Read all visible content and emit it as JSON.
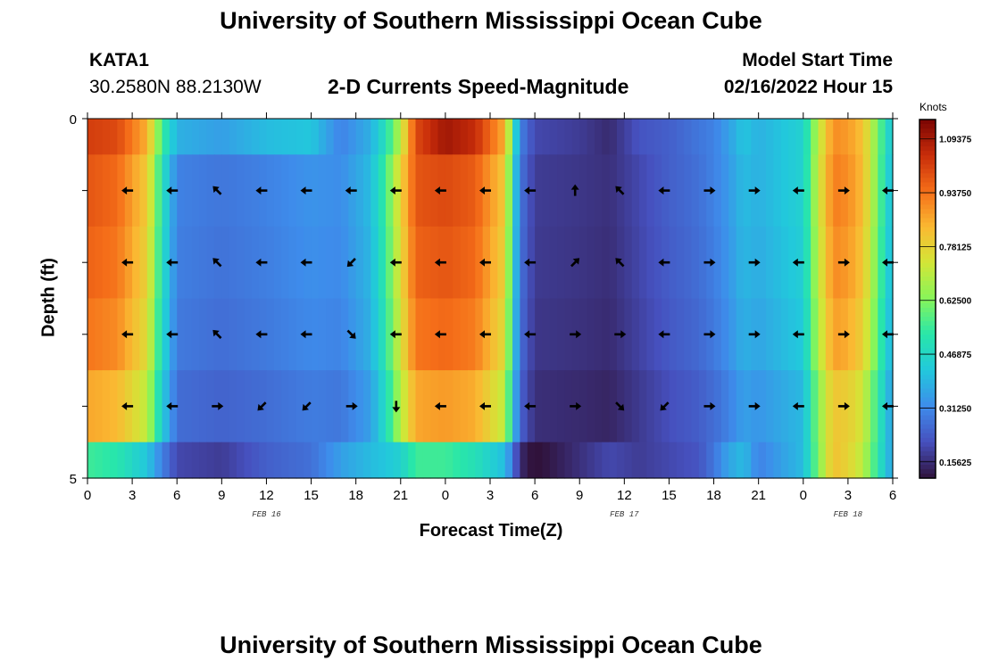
{
  "header": {
    "title": "University of Southern Mississippi Ocean Cube",
    "station": "KATA1",
    "coords": "30.2580N  88.2130W",
    "subtitle": "2-D Currents Speed-Magnitude",
    "model_label": "Model Start Time",
    "model_time": "02/16/2022 Hour 15"
  },
  "footer": {
    "title": "University of Southern Mississippi Ocean Cube"
  },
  "chart_data": {
    "type": "heatmap",
    "title": "2-D Currents Speed-Magnitude",
    "xlabel": "Forecast Time(Z)",
    "ylabel": "Depth (ft)",
    "x_hours": [
      0,
      54
    ],
    "y_depth_ft": [
      0,
      5
    ],
    "x_tick_labels": [
      "0",
      "3",
      "6",
      "9",
      "12",
      "15",
      "18",
      "21",
      "0",
      "3",
      "6",
      "9",
      "12",
      "15",
      "18",
      "21",
      "0",
      "3",
      "6"
    ],
    "y_tick_labels": [
      "0",
      "5"
    ],
    "day_labels": [
      {
        "text": "FEB 16",
        "hour": 12
      },
      {
        "text": "FEB 17",
        "hour": 36
      },
      {
        "text": "FEB 18",
        "hour": 51
      }
    ],
    "colorbar": {
      "unit": "Knots",
      "min": 0.109,
      "max": 1.15,
      "ticks": [
        "0.15625",
        "0.31250",
        "0.46875",
        "0.62500",
        "0.78125",
        "0.93750",
        "1.09375"
      ],
      "tick_values": [
        0.15625,
        0.3125,
        0.46875,
        0.625,
        0.78125,
        0.9375,
        1.09375
      ]
    },
    "depth_rows_ft": [
      0.25,
      1.0,
      2.0,
      3.0,
      4.0,
      4.75
    ],
    "speed_time_hours": [
      0,
      2,
      4,
      5,
      6,
      9,
      12,
      15,
      17,
      19,
      20,
      21,
      22,
      24,
      26,
      28,
      28.5,
      29,
      30,
      33,
      35,
      37,
      39,
      41,
      42,
      43,
      44,
      45,
      48,
      49,
      50,
      51,
      52,
      54
    ],
    "speed_knots": {
      "surface_row": [
        1.02,
        1.0,
        0.85,
        0.55,
        0.38,
        0.35,
        0.4,
        0.42,
        0.3,
        0.38,
        0.5,
        0.7,
        1.0,
        1.1,
        1.05,
        0.85,
        0.55,
        0.3,
        0.2,
        0.18,
        0.15,
        0.22,
        0.24,
        0.28,
        0.3,
        0.35,
        0.42,
        0.38,
        0.45,
        0.7,
        0.9,
        0.88,
        0.82,
        0.4
      ],
      "middle_rows": [
        0.98,
        0.95,
        0.8,
        0.5,
        0.3,
        0.28,
        0.3,
        0.33,
        0.32,
        0.4,
        0.55,
        0.78,
        0.98,
        1.0,
        0.97,
        0.8,
        0.5,
        0.28,
        0.18,
        0.17,
        0.16,
        0.2,
        0.24,
        0.27,
        0.3,
        0.34,
        0.4,
        0.38,
        0.45,
        0.72,
        0.92,
        0.9,
        0.83,
        0.38
      ],
      "bottom_row": [
        0.55,
        0.52,
        0.42,
        0.3,
        0.2,
        0.18,
        0.24,
        0.27,
        0.35,
        0.4,
        0.42,
        0.45,
        0.55,
        0.55,
        0.5,
        0.4,
        0.28,
        0.15,
        0.1,
        0.16,
        0.2,
        0.18,
        0.2,
        0.22,
        0.28,
        0.36,
        0.4,
        0.3,
        0.4,
        0.62,
        0.82,
        0.78,
        0.7,
        0.34
      ]
    },
    "arrows": [
      {
        "hour": 2.7,
        "depth": 1,
        "dir": "W"
      },
      {
        "hour": 5.7,
        "depth": 1,
        "dir": "W"
      },
      {
        "hour": 8.7,
        "depth": 1,
        "dir": "NW"
      },
      {
        "hour": 11.7,
        "depth": 1,
        "dir": "W"
      },
      {
        "hour": 14.7,
        "depth": 1,
        "dir": "W"
      },
      {
        "hour": 17.7,
        "depth": 1,
        "dir": "W"
      },
      {
        "hour": 20.7,
        "depth": 1,
        "dir": "W"
      },
      {
        "hour": 23.7,
        "depth": 1,
        "dir": "W"
      },
      {
        "hour": 26.7,
        "depth": 1,
        "dir": "W"
      },
      {
        "hour": 29.7,
        "depth": 1,
        "dir": "W"
      },
      {
        "hour": 32.7,
        "depth": 1,
        "dir": "N"
      },
      {
        "hour": 35.7,
        "depth": 1,
        "dir": "NW"
      },
      {
        "hour": 38.7,
        "depth": 1,
        "dir": "W"
      },
      {
        "hour": 41.7,
        "depth": 1,
        "dir": "E"
      },
      {
        "hour": 44.7,
        "depth": 1,
        "dir": "E"
      },
      {
        "hour": 47.7,
        "depth": 1,
        "dir": "W"
      },
      {
        "hour": 50.7,
        "depth": 1,
        "dir": "E"
      },
      {
        "hour": 53.7,
        "depth": 1,
        "dir": "W"
      },
      {
        "hour": 2.7,
        "depth": 2,
        "dir": "W"
      },
      {
        "hour": 5.7,
        "depth": 2,
        "dir": "W"
      },
      {
        "hour": 8.7,
        "depth": 2,
        "dir": "NW"
      },
      {
        "hour": 11.7,
        "depth": 2,
        "dir": "W"
      },
      {
        "hour": 14.7,
        "depth": 2,
        "dir": "W"
      },
      {
        "hour": 17.7,
        "depth": 2,
        "dir": "SW"
      },
      {
        "hour": 20.7,
        "depth": 2,
        "dir": "W"
      },
      {
        "hour": 23.7,
        "depth": 2,
        "dir": "W"
      },
      {
        "hour": 26.7,
        "depth": 2,
        "dir": "W"
      },
      {
        "hour": 29.7,
        "depth": 2,
        "dir": "W"
      },
      {
        "hour": 32.7,
        "depth": 2,
        "dir": "NE"
      },
      {
        "hour": 35.7,
        "depth": 2,
        "dir": "NW"
      },
      {
        "hour": 38.7,
        "depth": 2,
        "dir": "W"
      },
      {
        "hour": 41.7,
        "depth": 2,
        "dir": "E"
      },
      {
        "hour": 44.7,
        "depth": 2,
        "dir": "E"
      },
      {
        "hour": 47.7,
        "depth": 2,
        "dir": "W"
      },
      {
        "hour": 50.7,
        "depth": 2,
        "dir": "E"
      },
      {
        "hour": 53.7,
        "depth": 2,
        "dir": "W"
      },
      {
        "hour": 2.7,
        "depth": 3,
        "dir": "W"
      },
      {
        "hour": 5.7,
        "depth": 3,
        "dir": "W"
      },
      {
        "hour": 8.7,
        "depth": 3,
        "dir": "NW"
      },
      {
        "hour": 11.7,
        "depth": 3,
        "dir": "W"
      },
      {
        "hour": 14.7,
        "depth": 3,
        "dir": "W"
      },
      {
        "hour": 17.7,
        "depth": 3,
        "dir": "SE"
      },
      {
        "hour": 20.7,
        "depth": 3,
        "dir": "W"
      },
      {
        "hour": 23.7,
        "depth": 3,
        "dir": "W"
      },
      {
        "hour": 26.7,
        "depth": 3,
        "dir": "W"
      },
      {
        "hour": 29.7,
        "depth": 3,
        "dir": "W"
      },
      {
        "hour": 32.7,
        "depth": 3,
        "dir": "E"
      },
      {
        "hour": 35.7,
        "depth": 3,
        "dir": "E"
      },
      {
        "hour": 38.7,
        "depth": 3,
        "dir": "W"
      },
      {
        "hour": 41.7,
        "depth": 3,
        "dir": "E"
      },
      {
        "hour": 44.7,
        "depth": 3,
        "dir": "E"
      },
      {
        "hour": 47.7,
        "depth": 3,
        "dir": "W"
      },
      {
        "hour": 50.7,
        "depth": 3,
        "dir": "E"
      },
      {
        "hour": 53.7,
        "depth": 3,
        "dir": "W"
      },
      {
        "hour": 2.7,
        "depth": 4,
        "dir": "W"
      },
      {
        "hour": 5.7,
        "depth": 4,
        "dir": "W"
      },
      {
        "hour": 8.7,
        "depth": 4,
        "dir": "E"
      },
      {
        "hour": 11.7,
        "depth": 4,
        "dir": "SW"
      },
      {
        "hour": 14.7,
        "depth": 4,
        "dir": "SW"
      },
      {
        "hour": 17.7,
        "depth": 4,
        "dir": "E"
      },
      {
        "hour": 20.7,
        "depth": 4,
        "dir": "S"
      },
      {
        "hour": 23.7,
        "depth": 4,
        "dir": "W"
      },
      {
        "hour": 26.7,
        "depth": 4,
        "dir": "W"
      },
      {
        "hour": 29.7,
        "depth": 4,
        "dir": "W"
      },
      {
        "hour": 32.7,
        "depth": 4,
        "dir": "E"
      },
      {
        "hour": 35.7,
        "depth": 4,
        "dir": "SE"
      },
      {
        "hour": 38.7,
        "depth": 4,
        "dir": "SW"
      },
      {
        "hour": 41.7,
        "depth": 4,
        "dir": "E"
      },
      {
        "hour": 44.7,
        "depth": 4,
        "dir": "E"
      },
      {
        "hour": 47.7,
        "depth": 4,
        "dir": "W"
      },
      {
        "hour": 50.7,
        "depth": 4,
        "dir": "E"
      },
      {
        "hour": 53.7,
        "depth": 4,
        "dir": "W"
      }
    ]
  }
}
